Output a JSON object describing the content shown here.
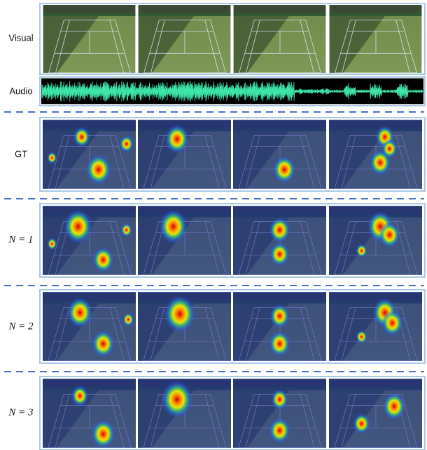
{
  "rows": [
    {
      "label": "Visual"
    },
    {
      "label": "Audio"
    },
    {
      "label": "GT"
    },
    {
      "label": "N = 1"
    },
    {
      "label": "N = 2"
    },
    {
      "label": "N = 3"
    }
  ]
}
